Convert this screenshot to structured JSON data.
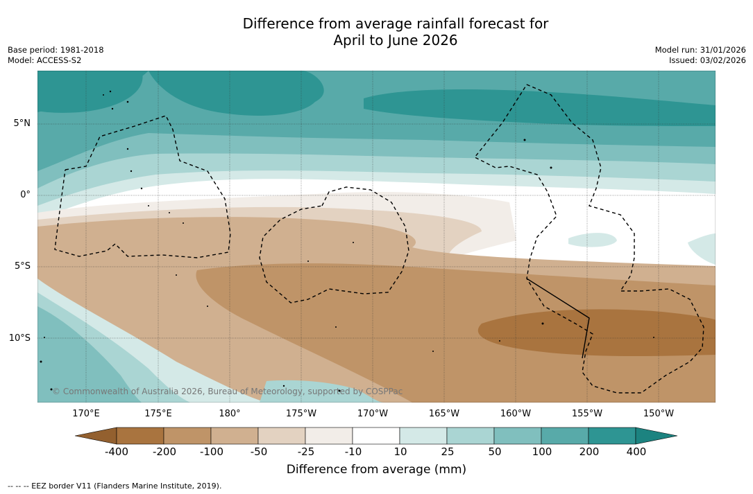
{
  "title_line1": "Difference from average rainfall forecast for",
  "title_line2": "April to June 2026",
  "meta_left": {
    "base_period": "Base period: 1981-2018",
    "model": "Model: ACCESS-S2"
  },
  "meta_right": {
    "model_run": "Model run: 31/01/2026",
    "issued": "Issued: 03/02/2026"
  },
  "lat_labels": [
    "5°N",
    "0°",
    "5°S",
    "10°S"
  ],
  "lon_labels": [
    "170°E",
    "175°E",
    "180°",
    "175°W",
    "170°W",
    "165°W",
    "160°W",
    "155°W",
    "150°W"
  ],
  "copyright": "© Commonwealth of Australia 2026, Bureau of Meteorology, supported by COSPPac",
  "colorbar": {
    "labels": [
      "-400",
      "-200",
      "-100",
      "-50",
      "-25",
      "-10",
      "10",
      "25",
      "50",
      "100",
      "200",
      "400"
    ],
    "colors": [
      "#a9743f",
      "#bf9468",
      "#d0b090",
      "#e3d2c1",
      "#f2ede8",
      "#ffffff",
      "#d4e9e7",
      "#aad5d3",
      "#80bfbe",
      "#58aaa9",
      "#2e9593"
    ],
    "extend_low_color": "#93602f",
    "extend_high_color": "#1c8380",
    "title": "Difference from average (mm)"
  },
  "footnote": "--  --  -- EEZ border V11 (Flanders Marine Institute, 2019)."
}
